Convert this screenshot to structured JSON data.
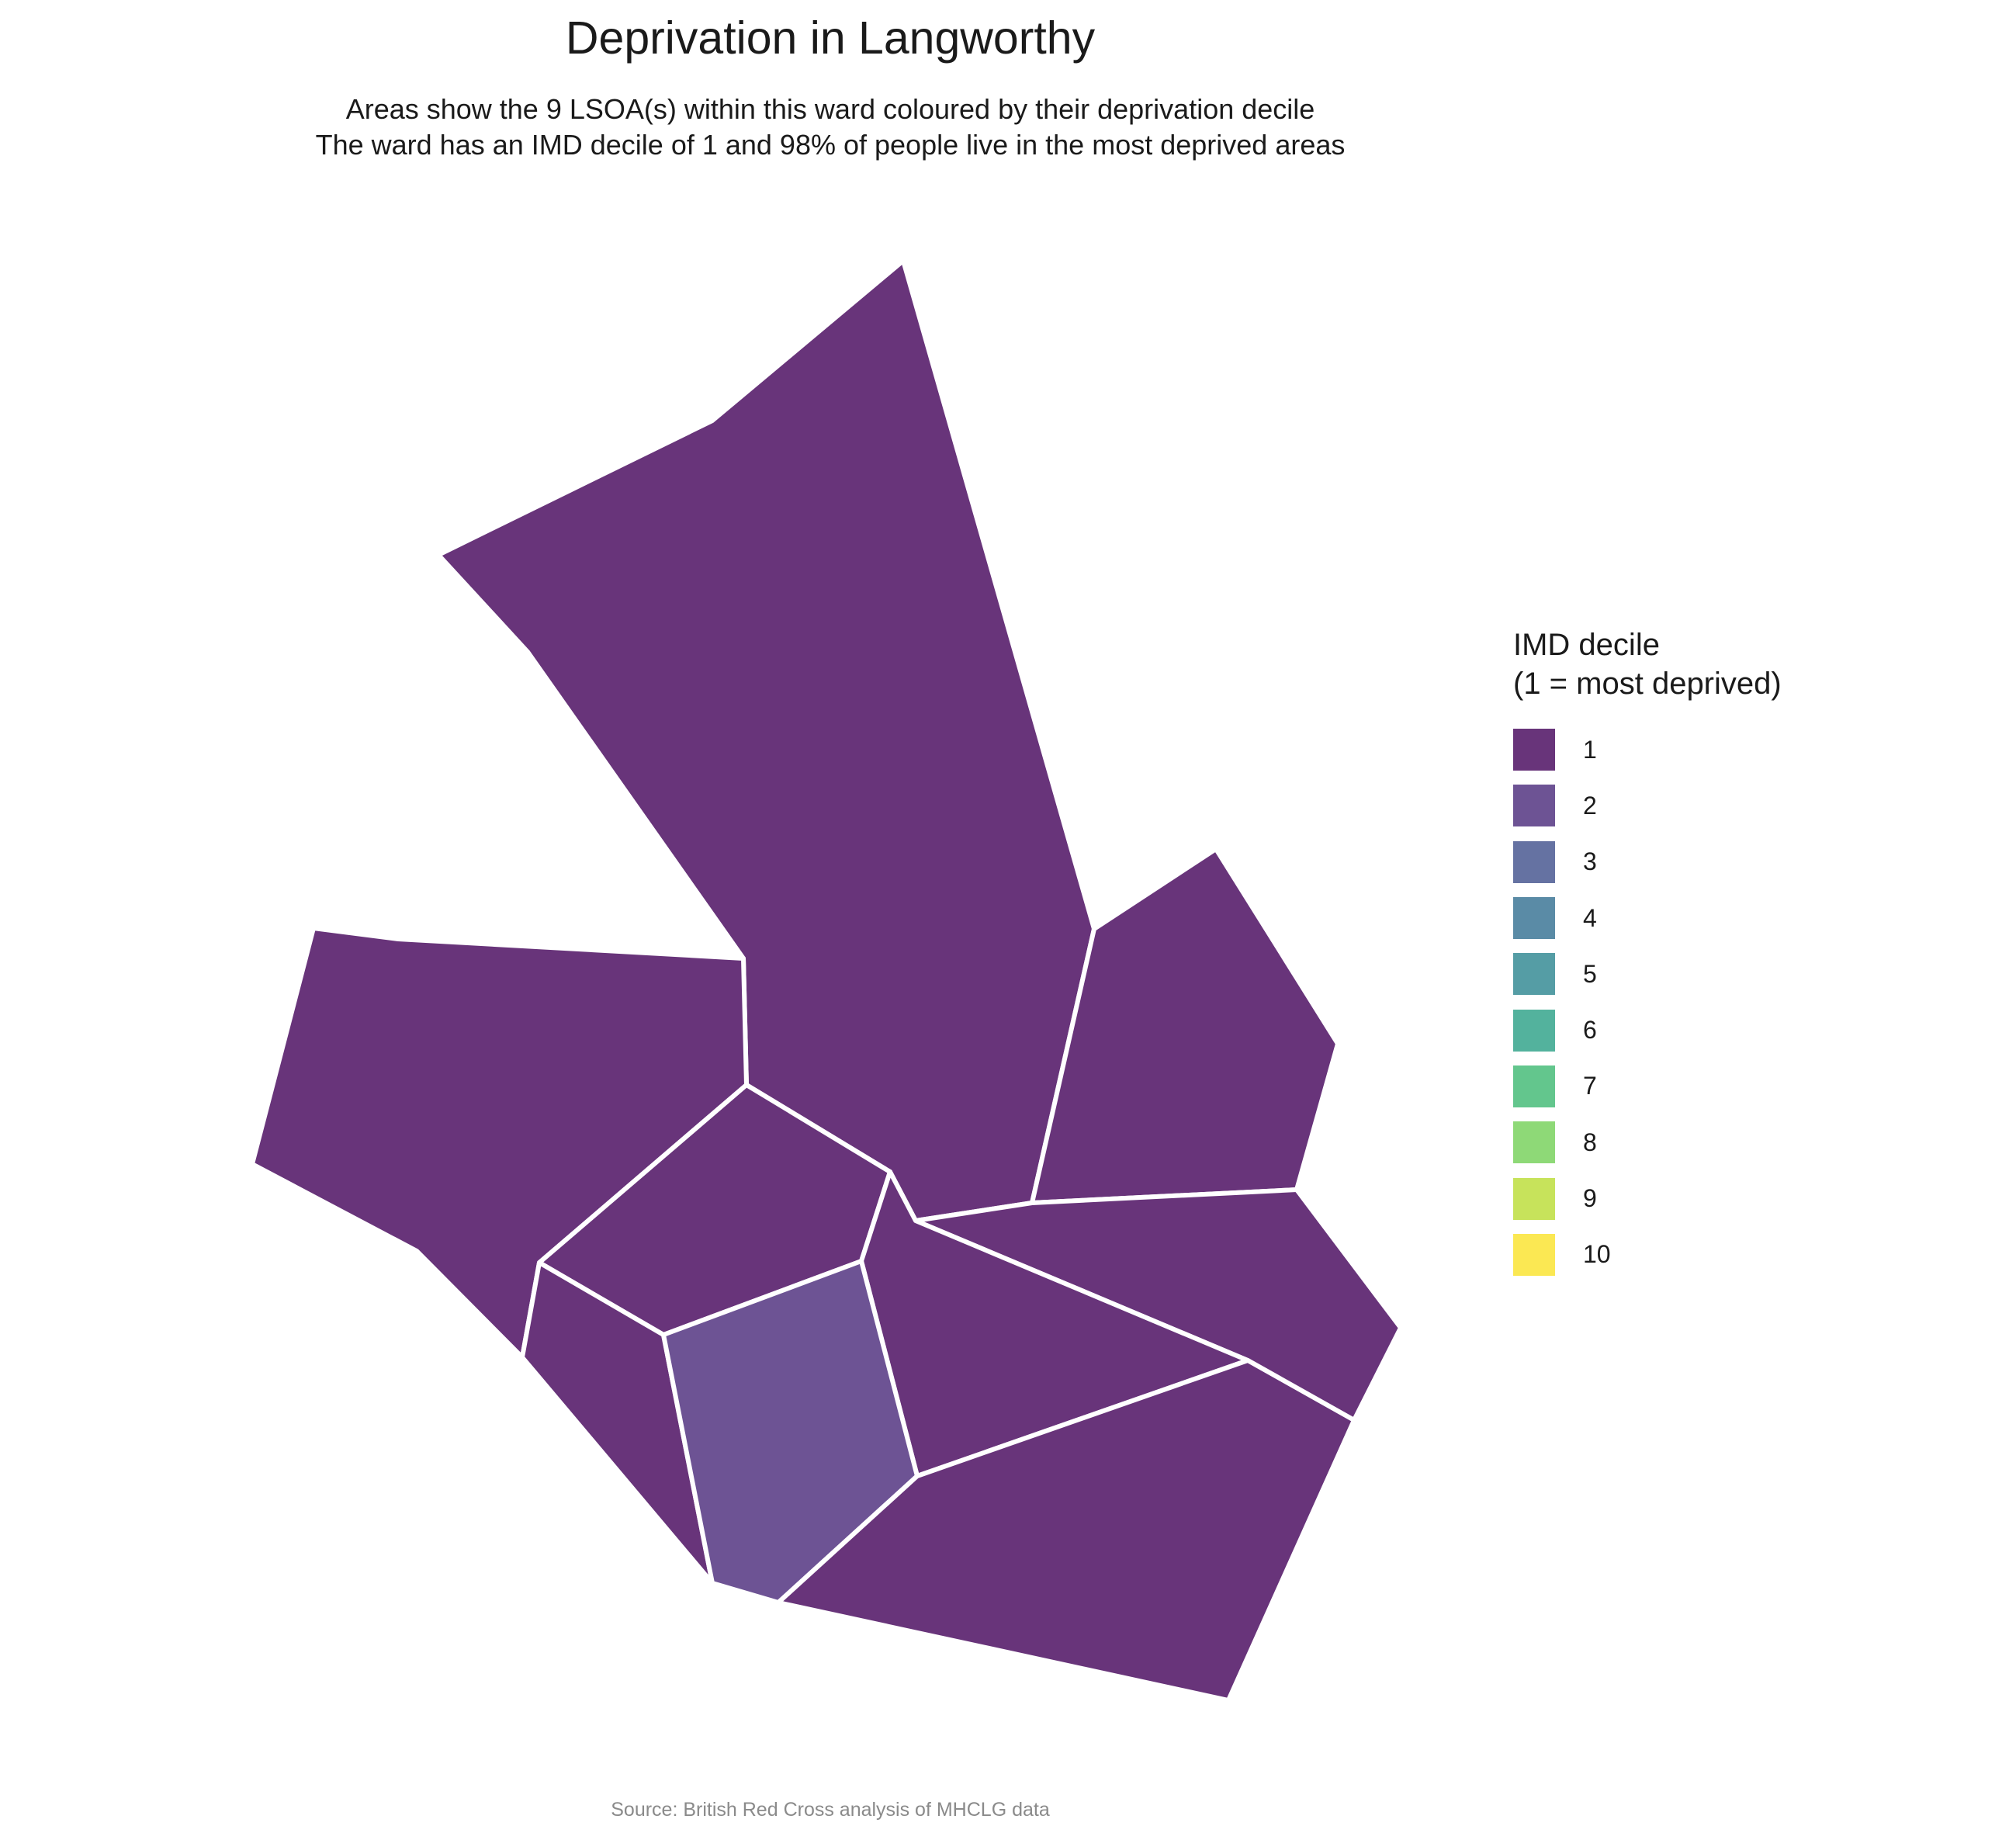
{
  "title": "Deprivation in Langworthy",
  "subtitle": {
    "line1": "Areas show the 9 LSOA(s) within this ward coloured by their deprivation decile",
    "line2": "The ward has an IMD decile of 1 and 98% of people live in the most deprived areas"
  },
  "caption": "Source: British Red Cross analysis of MHCLG data",
  "legend": {
    "title_line1": "IMD decile",
    "title_line2": "(1 = most deprived)",
    "items": [
      {
        "label": "1",
        "color": "#68347a"
      },
      {
        "label": "2",
        "color": "#6d5394"
      },
      {
        "label": "3",
        "color": "#6572a2"
      },
      {
        "label": "4",
        "color": "#5a8ba6"
      },
      {
        "label": "5",
        "color": "#559da5"
      },
      {
        "label": "6",
        "color": "#53b29d"
      },
      {
        "label": "7",
        "color": "#63c68d"
      },
      {
        "label": "8",
        "color": "#8ed977"
      },
      {
        "label": "9",
        "color": "#c7e35b"
      },
      {
        "label": "10",
        "color": "#fbe853"
      }
    ]
  },
  "map": {
    "boundary_color": "#ffffff",
    "areas": [
      {
        "id": "lsoa-north",
        "decile": 1
      },
      {
        "id": "lsoa-west",
        "decile": 1
      },
      {
        "id": "lsoa-northeast",
        "decile": 1
      },
      {
        "id": "lsoa-center",
        "decile": 1
      },
      {
        "id": "lsoa-east",
        "decile": 1
      },
      {
        "id": "lsoa-center-east",
        "decile": 1
      },
      {
        "id": "lsoa-southwest",
        "decile": 1
      },
      {
        "id": "lsoa-south-center",
        "decile": 2
      },
      {
        "id": "lsoa-southeast",
        "decile": 1
      }
    ]
  }
}
